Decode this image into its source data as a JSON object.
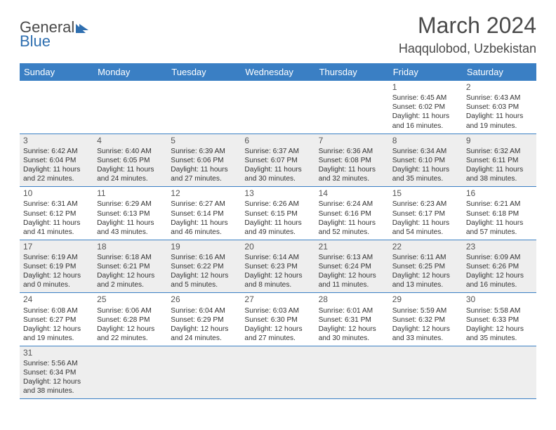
{
  "logo": {
    "text1": "General",
    "text2": "Blue",
    "color1": "#666666",
    "color2": "#2f6fb0",
    "tri_color": "#2f6fb0"
  },
  "title": "March 2024",
  "location": "Haqqulobod, Uzbekistan",
  "header_bg": "#3a7fc4",
  "alt_row_bg": "#eeeeee",
  "border_color": "#3a7fc4",
  "weekdays": [
    "Sunday",
    "Monday",
    "Tuesday",
    "Wednesday",
    "Thursday",
    "Friday",
    "Saturday"
  ],
  "weeks": [
    [
      null,
      null,
      null,
      null,
      null,
      {
        "n": "1",
        "sr": "Sunrise: 6:45 AM",
        "ss": "Sunset: 6:02 PM",
        "d1": "Daylight: 11 hours",
        "d2": "and 16 minutes."
      },
      {
        "n": "2",
        "sr": "Sunrise: 6:43 AM",
        "ss": "Sunset: 6:03 PM",
        "d1": "Daylight: 11 hours",
        "d2": "and 19 minutes."
      }
    ],
    [
      {
        "n": "3",
        "sr": "Sunrise: 6:42 AM",
        "ss": "Sunset: 6:04 PM",
        "d1": "Daylight: 11 hours",
        "d2": "and 22 minutes."
      },
      {
        "n": "4",
        "sr": "Sunrise: 6:40 AM",
        "ss": "Sunset: 6:05 PM",
        "d1": "Daylight: 11 hours",
        "d2": "and 24 minutes."
      },
      {
        "n": "5",
        "sr": "Sunrise: 6:39 AM",
        "ss": "Sunset: 6:06 PM",
        "d1": "Daylight: 11 hours",
        "d2": "and 27 minutes."
      },
      {
        "n": "6",
        "sr": "Sunrise: 6:37 AM",
        "ss": "Sunset: 6:07 PM",
        "d1": "Daylight: 11 hours",
        "d2": "and 30 minutes."
      },
      {
        "n": "7",
        "sr": "Sunrise: 6:36 AM",
        "ss": "Sunset: 6:08 PM",
        "d1": "Daylight: 11 hours",
        "d2": "and 32 minutes."
      },
      {
        "n": "8",
        "sr": "Sunrise: 6:34 AM",
        "ss": "Sunset: 6:10 PM",
        "d1": "Daylight: 11 hours",
        "d2": "and 35 minutes."
      },
      {
        "n": "9",
        "sr": "Sunrise: 6:32 AM",
        "ss": "Sunset: 6:11 PM",
        "d1": "Daylight: 11 hours",
        "d2": "and 38 minutes."
      }
    ],
    [
      {
        "n": "10",
        "sr": "Sunrise: 6:31 AM",
        "ss": "Sunset: 6:12 PM",
        "d1": "Daylight: 11 hours",
        "d2": "and 41 minutes."
      },
      {
        "n": "11",
        "sr": "Sunrise: 6:29 AM",
        "ss": "Sunset: 6:13 PM",
        "d1": "Daylight: 11 hours",
        "d2": "and 43 minutes."
      },
      {
        "n": "12",
        "sr": "Sunrise: 6:27 AM",
        "ss": "Sunset: 6:14 PM",
        "d1": "Daylight: 11 hours",
        "d2": "and 46 minutes."
      },
      {
        "n": "13",
        "sr": "Sunrise: 6:26 AM",
        "ss": "Sunset: 6:15 PM",
        "d1": "Daylight: 11 hours",
        "d2": "and 49 minutes."
      },
      {
        "n": "14",
        "sr": "Sunrise: 6:24 AM",
        "ss": "Sunset: 6:16 PM",
        "d1": "Daylight: 11 hours",
        "d2": "and 52 minutes."
      },
      {
        "n": "15",
        "sr": "Sunrise: 6:23 AM",
        "ss": "Sunset: 6:17 PM",
        "d1": "Daylight: 11 hours",
        "d2": "and 54 minutes."
      },
      {
        "n": "16",
        "sr": "Sunrise: 6:21 AM",
        "ss": "Sunset: 6:18 PM",
        "d1": "Daylight: 11 hours",
        "d2": "and 57 minutes."
      }
    ],
    [
      {
        "n": "17",
        "sr": "Sunrise: 6:19 AM",
        "ss": "Sunset: 6:19 PM",
        "d1": "Daylight: 12 hours",
        "d2": "and 0 minutes."
      },
      {
        "n": "18",
        "sr": "Sunrise: 6:18 AM",
        "ss": "Sunset: 6:21 PM",
        "d1": "Daylight: 12 hours",
        "d2": "and 2 minutes."
      },
      {
        "n": "19",
        "sr": "Sunrise: 6:16 AM",
        "ss": "Sunset: 6:22 PM",
        "d1": "Daylight: 12 hours",
        "d2": "and 5 minutes."
      },
      {
        "n": "20",
        "sr": "Sunrise: 6:14 AM",
        "ss": "Sunset: 6:23 PM",
        "d1": "Daylight: 12 hours",
        "d2": "and 8 minutes."
      },
      {
        "n": "21",
        "sr": "Sunrise: 6:13 AM",
        "ss": "Sunset: 6:24 PM",
        "d1": "Daylight: 12 hours",
        "d2": "and 11 minutes."
      },
      {
        "n": "22",
        "sr": "Sunrise: 6:11 AM",
        "ss": "Sunset: 6:25 PM",
        "d1": "Daylight: 12 hours",
        "d2": "and 13 minutes."
      },
      {
        "n": "23",
        "sr": "Sunrise: 6:09 AM",
        "ss": "Sunset: 6:26 PM",
        "d1": "Daylight: 12 hours",
        "d2": "and 16 minutes."
      }
    ],
    [
      {
        "n": "24",
        "sr": "Sunrise: 6:08 AM",
        "ss": "Sunset: 6:27 PM",
        "d1": "Daylight: 12 hours",
        "d2": "and 19 minutes."
      },
      {
        "n": "25",
        "sr": "Sunrise: 6:06 AM",
        "ss": "Sunset: 6:28 PM",
        "d1": "Daylight: 12 hours",
        "d2": "and 22 minutes."
      },
      {
        "n": "26",
        "sr": "Sunrise: 6:04 AM",
        "ss": "Sunset: 6:29 PM",
        "d1": "Daylight: 12 hours",
        "d2": "and 24 minutes."
      },
      {
        "n": "27",
        "sr": "Sunrise: 6:03 AM",
        "ss": "Sunset: 6:30 PM",
        "d1": "Daylight: 12 hours",
        "d2": "and 27 minutes."
      },
      {
        "n": "28",
        "sr": "Sunrise: 6:01 AM",
        "ss": "Sunset: 6:31 PM",
        "d1": "Daylight: 12 hours",
        "d2": "and 30 minutes."
      },
      {
        "n": "29",
        "sr": "Sunrise: 5:59 AM",
        "ss": "Sunset: 6:32 PM",
        "d1": "Daylight: 12 hours",
        "d2": "and 33 minutes."
      },
      {
        "n": "30",
        "sr": "Sunrise: 5:58 AM",
        "ss": "Sunset: 6:33 PM",
        "d1": "Daylight: 12 hours",
        "d2": "and 35 minutes."
      }
    ],
    [
      {
        "n": "31",
        "sr": "Sunrise: 5:56 AM",
        "ss": "Sunset: 6:34 PM",
        "d1": "Daylight: 12 hours",
        "d2": "and 38 minutes."
      },
      null,
      null,
      null,
      null,
      null,
      null
    ]
  ]
}
